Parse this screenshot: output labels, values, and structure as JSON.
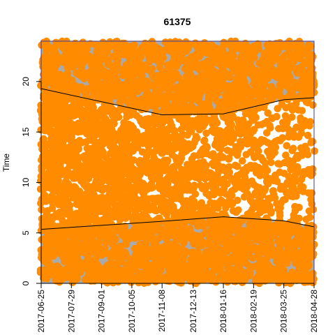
{
  "chart_data": {
    "type": "scatter",
    "title": "61375",
    "xlabel": "",
    "ylabel": "Time",
    "ylim": [
      0,
      24
    ],
    "xlim": [
      "2017-06-25",
      "2018-04-28"
    ],
    "x_ticks": [
      "2017-06-25",
      "2017-07-29",
      "2017-09-01",
      "2017-10-05",
      "2017-11-08",
      "2017-12-13",
      "2018-01-16",
      "2018-02-19",
      "2018-03-25",
      "2018-04-28"
    ],
    "y_ticks": [
      0,
      5,
      10,
      15,
      20
    ],
    "grid": false,
    "legend": "none",
    "background_color": "#aaaaaa",
    "point_color": "#ff8c00",
    "daylight_color": "#ffffff",
    "boundary_color": "#000000",
    "frame_color": "#3a3aa0",
    "series": [
      {
        "type": "line",
        "x": [
          "2017-06-25",
          "2017-09-01",
          "2017-11-08",
          "2018-01-16",
          "2018-03-25",
          "2018-04-28"
        ],
        "y": [
          5.35,
          5.75,
          6.15,
          6.6,
          6.2,
          5.6
        ]
      },
      {
        "type": "line",
        "x": [
          "2017-06-25",
          "2017-09-01",
          "2017-11-08",
          "2018-01-16",
          "2018-03-25",
          "2018-04-28"
        ],
        "y": [
          19.3,
          18.0,
          16.7,
          16.8,
          18.2,
          18.4
        ]
      }
    ]
  }
}
